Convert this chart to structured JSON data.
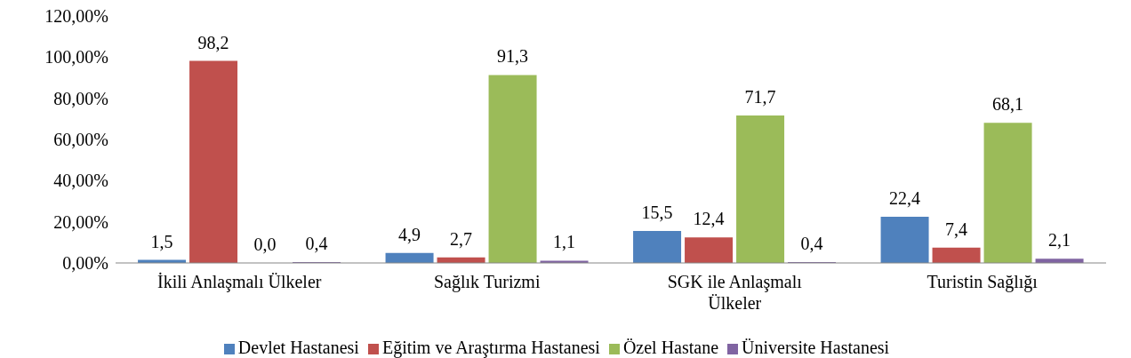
{
  "chart_data": {
    "type": "bar",
    "categories": [
      "İkili Anlaşmalı Ülkeler",
      "Sağlık Turizmi",
      "SGK ile Anlaşmalı Ülkeler",
      "Turistin Sağlığı"
    ],
    "series": [
      {
        "name": "Devlet Hastanesi",
        "color": "#4f81bd",
        "values": [
          1.5,
          4.9,
          15.5,
          22.4
        ],
        "value_labels": [
          "1,5",
          "4,9",
          "15,5",
          "22,4"
        ]
      },
      {
        "name": "Eğitim ve Araştırma Hastanesi",
        "color": "#c0504d",
        "values": [
          98.2,
          2.7,
          12.4,
          7.4
        ],
        "value_labels": [
          "98,2",
          "2,7",
          "12,4",
          "7,4"
        ]
      },
      {
        "name": "Özel Hastane",
        "color": "#9bbb59",
        "values": [
          0.0,
          91.3,
          71.7,
          68.1
        ],
        "value_labels": [
          "0,0",
          "91,3",
          "71,7",
          "68,1"
        ]
      },
      {
        "name": "Üniversite Hastanesi",
        "color": "#8064a2",
        "values": [
          0.4,
          1.1,
          0.4,
          2.1
        ],
        "value_labels": [
          "0,4",
          "1,1",
          "0,4",
          "2,1"
        ]
      }
    ],
    "ylim": [
      0,
      120
    ],
    "yticks": [
      {
        "value": 0,
        "label": "0,00%"
      },
      {
        "value": 20,
        "label": "20,00%"
      },
      {
        "value": 40,
        "label": "40,00%"
      },
      {
        "value": 60,
        "label": "60,00%"
      },
      {
        "value": 80,
        "label": "80,00%"
      },
      {
        "value": 100,
        "label": "100,00%"
      },
      {
        "value": 120,
        "label": "120,00%"
      }
    ],
    "grid": false,
    "legend": "bottom"
  }
}
